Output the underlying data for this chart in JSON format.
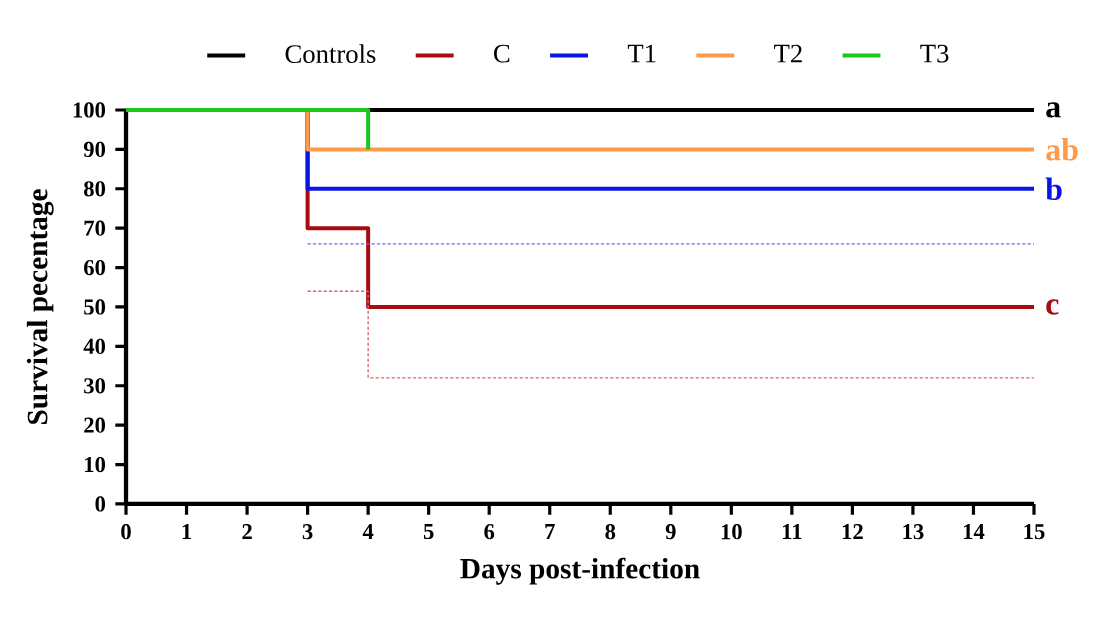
{
  "chart_data": {
    "type": "step",
    "xlabel": "Days post-infection",
    "ylabel": "Survival pecentage",
    "xlim": [
      0,
      15
    ],
    "ylim": [
      0,
      100
    ],
    "xticks": [
      0,
      1,
      2,
      3,
      4,
      5,
      6,
      7,
      8,
      9,
      10,
      11,
      12,
      13,
      14,
      15
    ],
    "yticks": [
      0,
      10,
      20,
      30,
      40,
      50,
      60,
      70,
      80,
      90,
      100
    ],
    "legend": "top",
    "grid": false,
    "marker": "none",
    "series": [
      {
        "name": "Controls",
        "color": "#000000",
        "x": [
          0,
          15
        ],
        "values": [
          100,
          100
        ]
      },
      {
        "name": "C",
        "color": "#a50d12",
        "x": [
          0,
          3,
          4,
          15
        ],
        "values": [
          100,
          70,
          50,
          50
        ]
      },
      {
        "name": "T1",
        "color": "#0a14e6",
        "x": [
          0,
          3,
          15
        ],
        "values": [
          100,
          80,
          80
        ]
      },
      {
        "name": "T2",
        "color": "#ff9a4a",
        "x": [
          0,
          3,
          15
        ],
        "values": [
          100,
          90,
          90
        ]
      },
      {
        "name": "T3",
        "color": "#19c819",
        "x": [
          0,
          4
        ],
        "values": [
          100,
          90
        ]
      },
      {
        "color": "#6a6af0",
        "x": [
          3,
          15
        ],
        "values": [
          66,
          66
        ],
        "line_style": "dotted"
      },
      {
        "color": "#e0606e",
        "x": [
          3,
          4,
          15
        ],
        "values": [
          54,
          32,
          32
        ],
        "line_style": "dotted"
      }
    ],
    "annotations": [
      "a",
      "ab",
      "b",
      "c"
    ]
  }
}
